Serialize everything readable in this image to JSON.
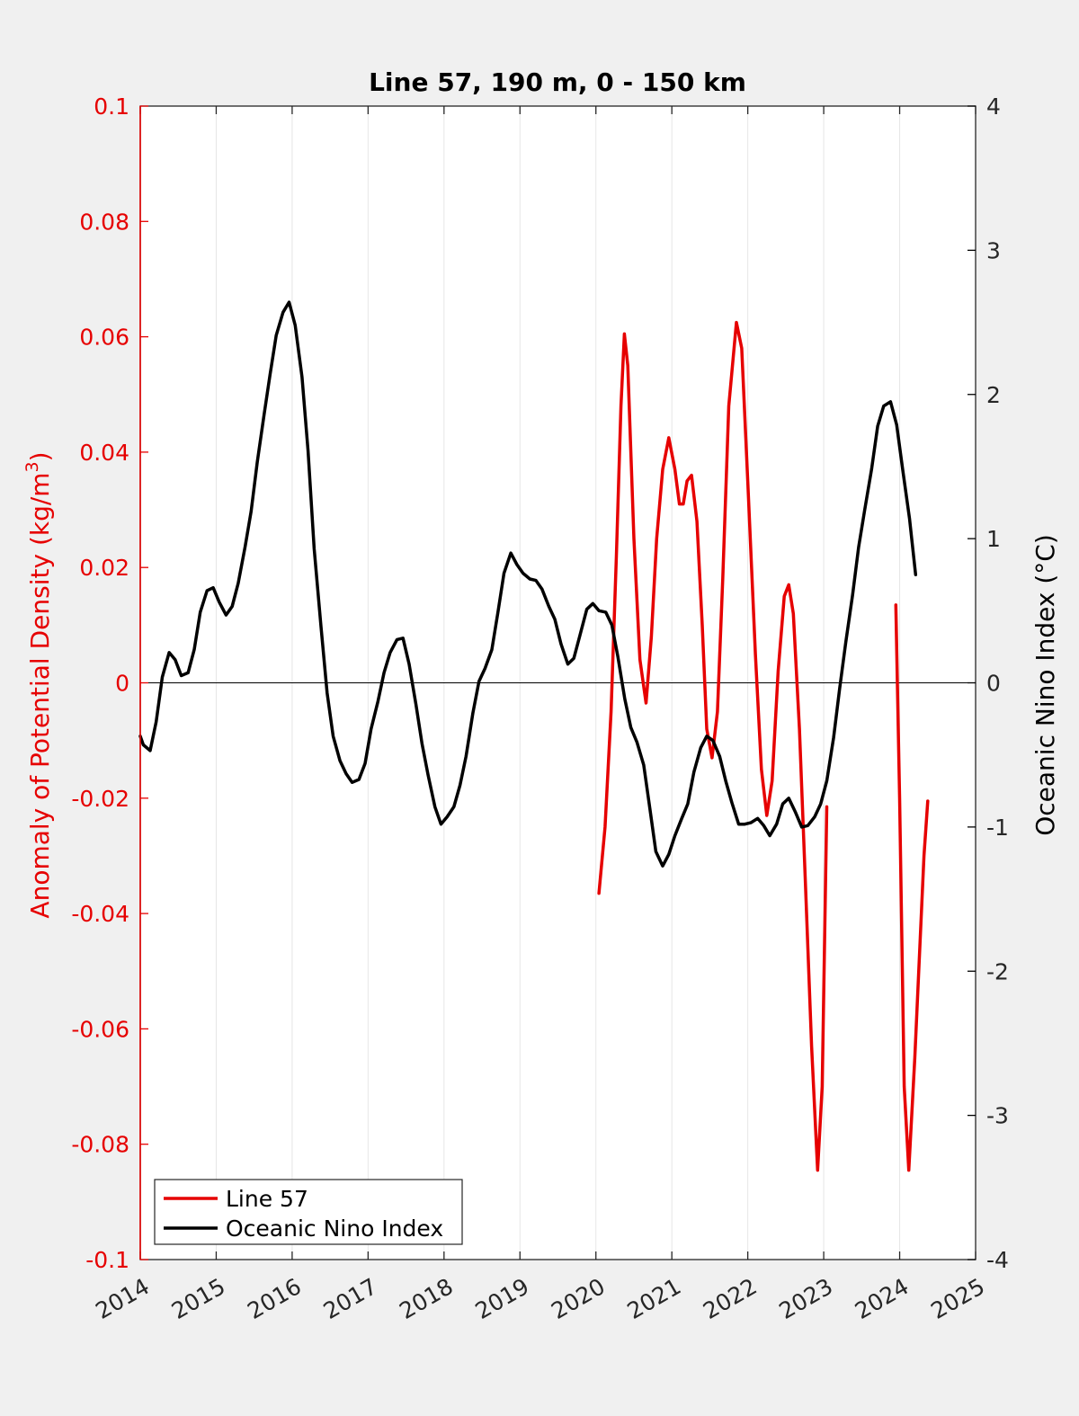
{
  "chart_data": {
    "type": "line",
    "title": "Line 57, 190 m, 0 - 150 km",
    "xlabel": "",
    "ylabel_left": "Anomaly of Potential Density (kg/m",
    "ylabel_left_sup": "3",
    "ylabel_left_close": ")",
    "ylabel_right": "Oceanic Nino Index (°C)",
    "xlim": [
      2014,
      2025
    ],
    "ylim_left": [
      -0.1,
      0.1
    ],
    "ylim_right": [
      -4,
      4
    ],
    "x_ticks": [
      2014,
      2015,
      2016,
      2017,
      2018,
      2019,
      2020,
      2021,
      2022,
      2023,
      2024,
      2025
    ],
    "x_tick_labels": [
      "2014",
      "2015",
      "2016",
      "2017",
      "2018",
      "2019",
      "2020",
      "2021",
      "2022",
      "2023",
      "2024",
      "2025"
    ],
    "y_left_ticks": [
      -0.1,
      -0.08,
      -0.06,
      -0.04,
      -0.02,
      0,
      0.02,
      0.04,
      0.06,
      0.08,
      0.1
    ],
    "y_left_tick_labels": [
      "-0.1",
      "-0.08",
      "-0.06",
      "-0.04",
      "-0.02",
      "0",
      "0.02",
      "0.04",
      "0.06",
      "0.08",
      "0.1"
    ],
    "y_right_ticks": [
      -4,
      -3,
      -2,
      -1,
      0,
      1,
      2,
      3,
      4
    ],
    "y_right_tick_labels": [
      "-4",
      "-3",
      "-2",
      "-1",
      "0",
      "1",
      "2",
      "3",
      "4"
    ],
    "grid": "vertical",
    "legend_position": "bottom-left",
    "colors": {
      "line57": "#e60000",
      "oni": "#000000",
      "left_axis": "#e60000",
      "right_axis": "#000000"
    },
    "series": [
      {
        "name": "Line 57",
        "axis": "left",
        "segments": [
          [
            [
              2020.04,
              -0.0365
            ],
            [
              2020.12,
              -0.025
            ],
            [
              2020.2,
              -0.005
            ],
            [
              2020.27,
              0.022
            ],
            [
              2020.33,
              0.048
            ],
            [
              2020.375,
              0.0605
            ],
            [
              2020.42,
              0.055
            ],
            [
              2020.5,
              0.025
            ],
            [
              2020.58,
              0.004
            ],
            [
              2020.66,
              -0.0035
            ],
            [
              2020.73,
              0.008
            ],
            [
              2020.8,
              0.025
            ],
            [
              2020.88,
              0.037
            ],
            [
              2020.96,
              0.0425
            ],
            [
              2021.04,
              0.037
            ],
            [
              2021.1,
              0.031
            ],
            [
              2021.15,
              0.031
            ],
            [
              2021.2,
              0.035
            ],
            [
              2021.26,
              0.036
            ],
            [
              2021.33,
              0.028
            ],
            [
              2021.4,
              0.01
            ],
            [
              2021.46,
              -0.008
            ],
            [
              2021.53,
              -0.013
            ],
            [
              2021.6,
              -0.005
            ],
            [
              2021.67,
              0.018
            ],
            [
              2021.75,
              0.048
            ],
            [
              2021.85,
              0.0625
            ],
            [
              2021.92,
              0.058
            ],
            [
              2022.0,
              0.035
            ],
            [
              2022.1,
              0.005
            ],
            [
              2022.18,
              -0.015
            ],
            [
              2022.25,
              -0.023
            ],
            [
              2022.32,
              -0.017
            ],
            [
              2022.4,
              0.002
            ],
            [
              2022.48,
              0.015
            ],
            [
              2022.54,
              0.017
            ],
            [
              2022.6,
              0.012
            ],
            [
              2022.68,
              -0.008
            ],
            [
              2022.76,
              -0.035
            ],
            [
              2022.84,
              -0.063
            ],
            [
              2022.92,
              -0.0845
            ],
            [
              2022.98,
              -0.07
            ],
            [
              2023.04,
              -0.0215
            ]
          ],
          [
            [
              2023.95,
              0.0135
            ],
            [
              2024.0,
              -0.02
            ],
            [
              2024.06,
              -0.07
            ],
            [
              2024.12,
              -0.0845
            ],
            [
              2024.2,
              -0.065
            ],
            [
              2024.32,
              -0.03
            ],
            [
              2024.37,
              -0.0205
            ]
          ]
        ]
      },
      {
        "name": "Oceanic Nino Index",
        "axis": "right",
        "segments": [
          [
            [
              2014.0,
              -0.37
            ],
            [
              2014.04,
              -0.43
            ],
            [
              2014.13,
              -0.47
            ],
            [
              2014.21,
              -0.27
            ],
            [
              2014.29,
              0.04
            ],
            [
              2014.38,
              0.21
            ],
            [
              2014.46,
              0.16
            ],
            [
              2014.54,
              0.05
            ],
            [
              2014.63,
              0.07
            ],
            [
              2014.71,
              0.23
            ],
            [
              2014.79,
              0.49
            ],
            [
              2014.88,
              0.64
            ],
            [
              2014.96,
              0.66
            ],
            [
              2015.04,
              0.56
            ],
            [
              2015.13,
              0.47
            ],
            [
              2015.21,
              0.53
            ],
            [
              2015.29,
              0.69
            ],
            [
              2015.38,
              0.94
            ],
            [
              2015.46,
              1.19
            ],
            [
              2015.54,
              1.53
            ],
            [
              2015.63,
              1.86
            ],
            [
              2015.71,
              2.14
            ],
            [
              2015.79,
              2.41
            ],
            [
              2015.88,
              2.57
            ],
            [
              2015.96,
              2.64
            ],
            [
              2016.04,
              2.48
            ],
            [
              2016.13,
              2.12
            ],
            [
              2016.21,
              1.61
            ],
            [
              2016.29,
              0.93
            ],
            [
              2016.38,
              0.39
            ],
            [
              2016.46,
              -0.07
            ],
            [
              2016.54,
              -0.37
            ],
            [
              2016.63,
              -0.54
            ],
            [
              2016.71,
              -0.63
            ],
            [
              2016.79,
              -0.69
            ],
            [
              2016.88,
              -0.67
            ],
            [
              2016.96,
              -0.56
            ],
            [
              2017.04,
              -0.32
            ],
            [
              2017.13,
              -0.13
            ],
            [
              2017.21,
              0.07
            ],
            [
              2017.29,
              0.21
            ],
            [
              2017.38,
              0.3
            ],
            [
              2017.46,
              0.31
            ],
            [
              2017.54,
              0.13
            ],
            [
              2017.63,
              -0.15
            ],
            [
              2017.71,
              -0.42
            ],
            [
              2017.79,
              -0.64
            ],
            [
              2017.88,
              -0.86
            ],
            [
              2017.96,
              -0.98
            ],
            [
              2018.04,
              -0.93
            ],
            [
              2018.13,
              -0.86
            ],
            [
              2018.21,
              -0.71
            ],
            [
              2018.29,
              -0.51
            ],
            [
              2018.38,
              -0.21
            ],
            [
              2018.46,
              0.01
            ],
            [
              2018.54,
              0.1
            ],
            [
              2018.63,
              0.23
            ],
            [
              2018.71,
              0.49
            ],
            [
              2018.79,
              0.76
            ],
            [
              2018.88,
              0.9
            ],
            [
              2018.96,
              0.82
            ],
            [
              2019.04,
              0.76
            ],
            [
              2019.13,
              0.72
            ],
            [
              2019.21,
              0.71
            ],
            [
              2019.29,
              0.65
            ],
            [
              2019.38,
              0.53
            ],
            [
              2019.46,
              0.44
            ],
            [
              2019.54,
              0.27
            ],
            [
              2019.63,
              0.13
            ],
            [
              2019.71,
              0.17
            ],
            [
              2019.79,
              0.33
            ],
            [
              2019.88,
              0.51
            ],
            [
              2019.96,
              0.55
            ],
            [
              2020.04,
              0.5
            ],
            [
              2020.13,
              0.49
            ],
            [
              2020.21,
              0.4
            ],
            [
              2020.29,
              0.18
            ],
            [
              2020.38,
              -0.11
            ],
            [
              2020.46,
              -0.31
            ],
            [
              2020.54,
              -0.41
            ],
            [
              2020.63,
              -0.57
            ],
            [
              2020.71,
              -0.87
            ],
            [
              2020.79,
              -1.17
            ],
            [
              2020.88,
              -1.27
            ],
            [
              2020.96,
              -1.19
            ],
            [
              2021.04,
              -1.06
            ],
            [
              2021.13,
              -0.94
            ],
            [
              2021.21,
              -0.84
            ],
            [
              2021.29,
              -0.62
            ],
            [
              2021.38,
              -0.45
            ],
            [
              2021.46,
              -0.37
            ],
            [
              2021.54,
              -0.4
            ],
            [
              2021.63,
              -0.51
            ],
            [
              2021.71,
              -0.68
            ],
            [
              2021.79,
              -0.83
            ],
            [
              2021.88,
              -0.98
            ],
            [
              2021.96,
              -0.98
            ],
            [
              2022.04,
              -0.97
            ],
            [
              2022.13,
              -0.94
            ],
            [
              2022.21,
              -0.99
            ],
            [
              2022.29,
              -1.06
            ],
            [
              2022.38,
              -0.98
            ],
            [
              2022.46,
              -0.84
            ],
            [
              2022.54,
              -0.8
            ],
            [
              2022.63,
              -0.9
            ],
            [
              2022.71,
              -1.0
            ],
            [
              2022.79,
              -0.99
            ],
            [
              2022.88,
              -0.93
            ],
            [
              2022.96,
              -0.84
            ],
            [
              2023.04,
              -0.68
            ],
            [
              2023.13,
              -0.38
            ],
            [
              2023.21,
              -0.04
            ],
            [
              2023.29,
              0.28
            ],
            [
              2023.38,
              0.61
            ],
            [
              2023.46,
              0.94
            ],
            [
              2023.54,
              1.2
            ],
            [
              2023.63,
              1.48
            ],
            [
              2023.71,
              1.78
            ],
            [
              2023.79,
              1.92
            ],
            [
              2023.88,
              1.95
            ],
            [
              2023.96,
              1.79
            ],
            [
              2024.04,
              1.48
            ],
            [
              2024.13,
              1.14
            ],
            [
              2024.21,
              0.75
            ]
          ]
        ]
      }
    ]
  },
  "legend": {
    "items": [
      "Line 57",
      "Oceanic Nino Index"
    ]
  }
}
